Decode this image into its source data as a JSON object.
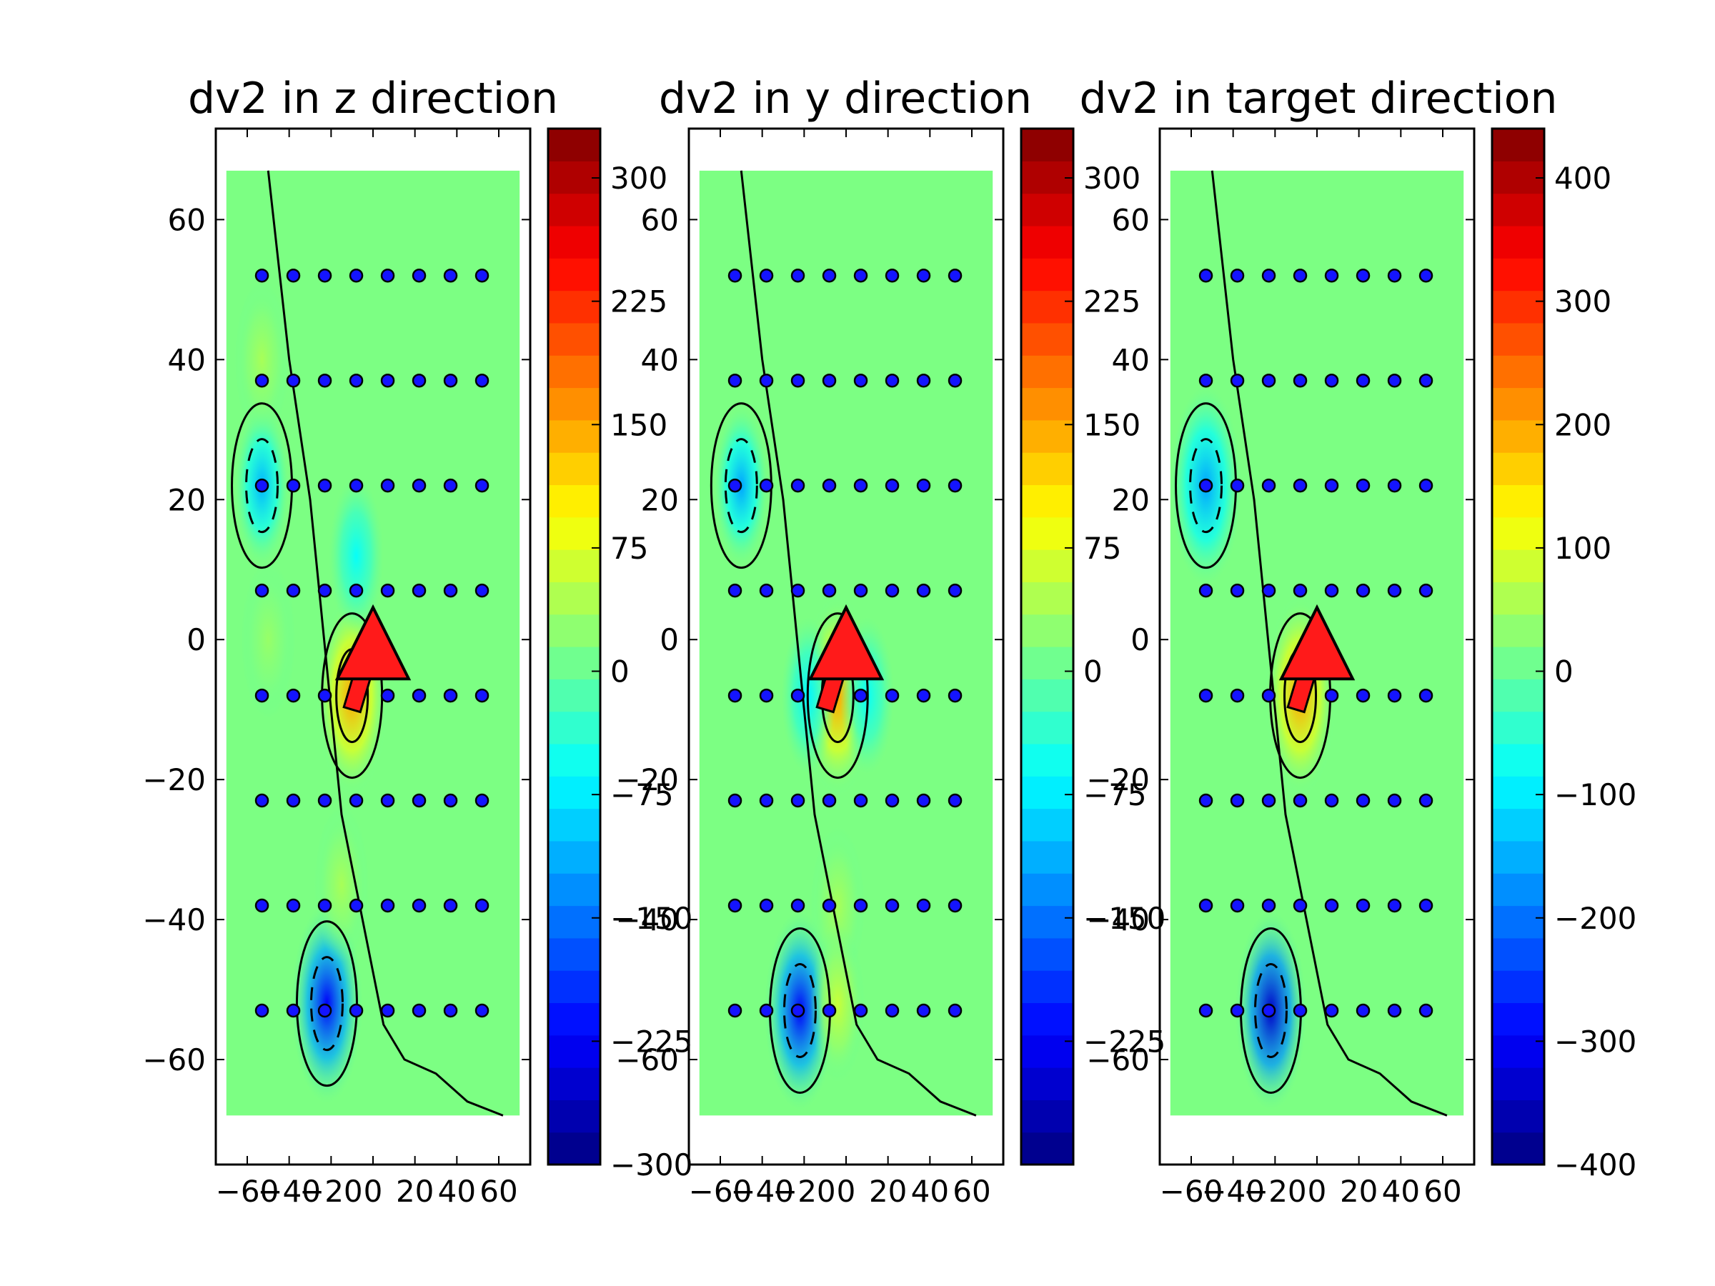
{
  "chart_data": [
    {
      "type": "heatmap",
      "title": "dv2 in z direction",
      "xlim": [
        -75,
        75
      ],
      "ylim": [
        -75,
        73
      ],
      "x_ticks": [
        "−60",
        "−40",
        "−20",
        "0",
        "20",
        "40",
        "60"
      ],
      "y_ticks": [
        "60",
        "40",
        "20",
        "0",
        "−20",
        "−40",
        "−60"
      ],
      "colorbar": {
        "colormap": "jet",
        "range": [
          -300,
          330
        ],
        "tick_labels": [
          "300",
          "225",
          "150",
          "75",
          "0",
          "−75",
          "−150",
          "−225",
          "−300"
        ],
        "tick_values": [
          300,
          225,
          150,
          75,
          0,
          -75,
          -150,
          -225,
          -300
        ]
      },
      "grid_points": {
        "x": [
          -53,
          -38,
          -23,
          -8,
          7,
          22,
          37,
          52
        ],
        "y": [
          52,
          37,
          22,
          7,
          -8,
          -23,
          -38,
          -53
        ]
      },
      "arrow": {
        "from": [
          -10,
          -10
        ],
        "to": [
          0,
          0
        ]
      },
      "features": [
        {
          "kind": "max",
          "x": -10,
          "y": -8,
          "value": 150
        },
        {
          "kind": "min",
          "x": -22,
          "y": -52,
          "value": -225
        },
        {
          "kind": "min",
          "x": -53,
          "y": 22,
          "value": -110
        },
        {
          "kind": "min",
          "x": -8,
          "y": 12,
          "value": -60
        },
        {
          "kind": "max",
          "x": -53,
          "y": 40,
          "value": 40
        },
        {
          "kind": "max",
          "x": -15,
          "y": -35,
          "value": 40
        },
        {
          "kind": "max",
          "x": -50,
          "y": 0,
          "value": 30
        }
      ]
    },
    {
      "type": "heatmap",
      "title": "dv2 in y direction",
      "xlim": [
        -75,
        75
      ],
      "ylim": [
        -75,
        73
      ],
      "x_ticks": [
        "−60",
        "−40",
        "−20",
        "0",
        "20",
        "40",
        "60"
      ],
      "y_ticks": [
        "60",
        "40",
        "20",
        "0",
        "−20",
        "−40",
        "−60"
      ],
      "colorbar": {
        "colormap": "jet",
        "range": [
          -300,
          330
        ],
        "tick_labels": [
          "300",
          "225",
          "150",
          "75",
          "0",
          "−75",
          "−150",
          "−225"
        ],
        "tick_values": [
          300,
          225,
          150,
          75,
          0,
          -75,
          -150,
          -225
        ]
      },
      "grid_points": {
        "x": [
          -53,
          -38,
          -23,
          -8,
          7,
          22,
          37,
          52
        ],
        "y": [
          52,
          37,
          22,
          7,
          -8,
          -23,
          -38,
          -53
        ]
      },
      "arrow": {
        "from": [
          -10,
          -10
        ],
        "to": [
          0,
          0
        ]
      },
      "features": [
        {
          "kind": "max",
          "x": -4,
          "y": -8,
          "value": 150
        },
        {
          "kind": "min",
          "x": -22,
          "y": -53,
          "value": -225
        },
        {
          "kind": "min",
          "x": -50,
          "y": 22,
          "value": -120
        },
        {
          "kind": "min",
          "x": -18,
          "y": -8,
          "value": -70
        },
        {
          "kind": "min",
          "x": 10,
          "y": -8,
          "value": -60
        },
        {
          "kind": "max",
          "x": -4,
          "y": -38,
          "value": 40
        },
        {
          "kind": "max",
          "x": -4,
          "y": -52,
          "value": 60
        }
      ]
    },
    {
      "type": "heatmap",
      "title": "dv2 in target direction",
      "xlim": [
        -75,
        75
      ],
      "ylim": [
        -75,
        73
      ],
      "x_ticks": [
        "−60",
        "−40",
        "−20",
        "0",
        "20",
        "40",
        "60"
      ],
      "y_ticks": [
        "60",
        "40",
        "20",
        "0",
        "−20",
        "−40",
        "−60"
      ],
      "colorbar": {
        "colormap": "jet",
        "range": [
          -400,
          440
        ],
        "tick_labels": [
          "400",
          "300",
          "200",
          "100",
          "0",
          "−100",
          "−200",
          "−300",
          "−400"
        ],
        "tick_values": [
          400,
          300,
          200,
          100,
          0,
          -100,
          -200,
          -300,
          -400
        ]
      },
      "grid_points": {
        "x": [
          -53,
          -38,
          -23,
          -8,
          7,
          22,
          37,
          52
        ],
        "y": [
          52,
          37,
          22,
          7,
          -8,
          -23,
          -38,
          -53
        ]
      },
      "arrow": {
        "from": [
          -10,
          -10
        ],
        "to": [
          0,
          0
        ]
      },
      "features": [
        {
          "kind": "max",
          "x": -8,
          "y": -8,
          "value": 200
        },
        {
          "kind": "min",
          "x": -22,
          "y": -53,
          "value": -340
        },
        {
          "kind": "min",
          "x": -53,
          "y": 22,
          "value": -160
        }
      ]
    }
  ],
  "colors": {
    "marker_fill": "#1414ff",
    "arrow_fill": "#ff1a1a",
    "contour": "#000000"
  }
}
